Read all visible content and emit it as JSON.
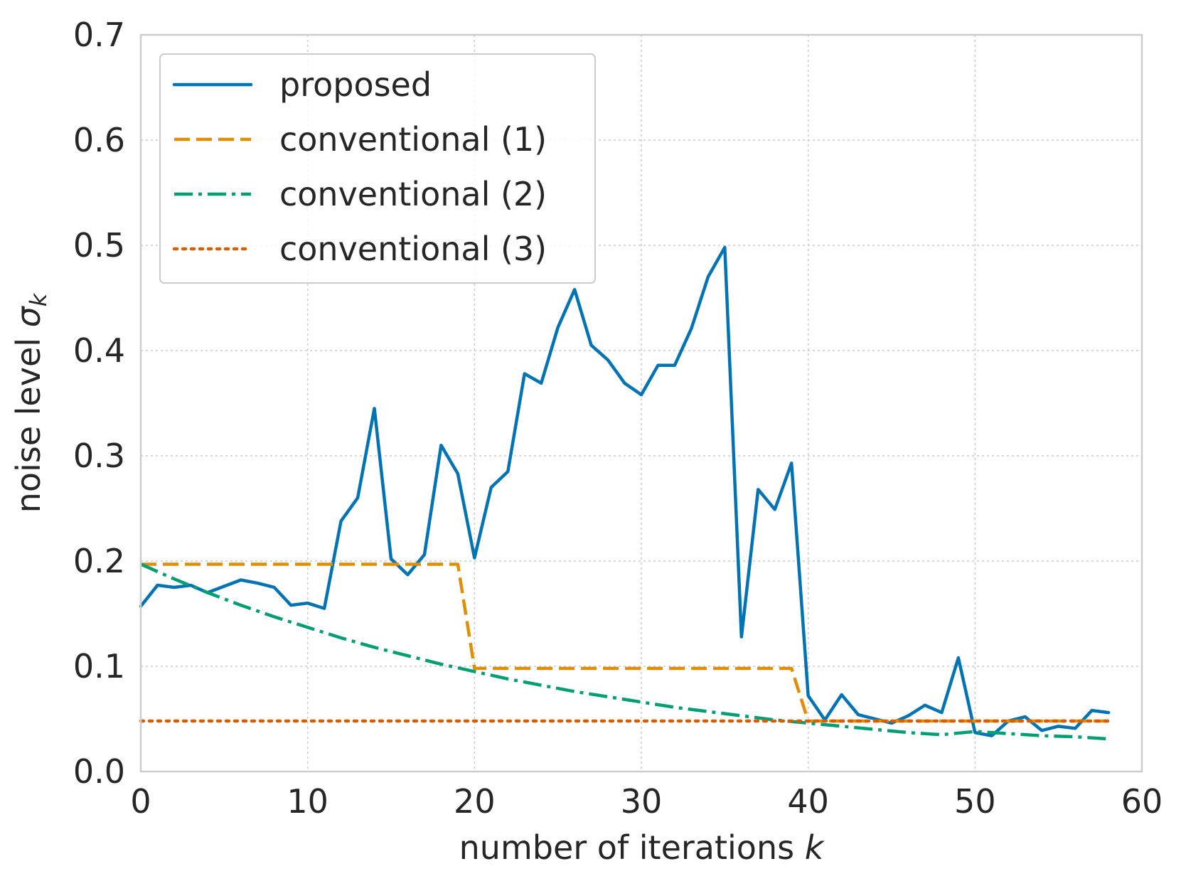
{
  "chart_data": {
    "type": "line",
    "xlabel": "number of iterations",
    "xlabel_var": "k",
    "ylabel": "noise level",
    "ylabel_var": "σ",
    "ylabel_sub": "k",
    "xlim": [
      0,
      60
    ],
    "ylim": [
      0,
      0.7
    ],
    "xticks": [
      0,
      10,
      20,
      30,
      40,
      50,
      60
    ],
    "yticks": [
      0.0,
      0.1,
      0.2,
      0.3,
      0.4,
      0.5,
      0.6,
      0.7
    ],
    "xtick_labels": [
      "0",
      "10",
      "20",
      "30",
      "40",
      "50",
      "60"
    ],
    "ytick_labels": [
      "0.0",
      "0.1",
      "0.2",
      "0.3",
      "0.4",
      "0.5",
      "0.6",
      "0.7"
    ],
    "grid": true,
    "legend_position": "top-left",
    "series": [
      {
        "name": "proposed",
        "color": "#0173b2",
        "style": "solid",
        "x": [
          0,
          1,
          2,
          3,
          4,
          5,
          6,
          7,
          8,
          9,
          10,
          11,
          12,
          13,
          14,
          15,
          16,
          17,
          18,
          19,
          20,
          21,
          22,
          23,
          24,
          25,
          26,
          27,
          28,
          29,
          30,
          31,
          32,
          33,
          34,
          35,
          36,
          37,
          38,
          39,
          40,
          41,
          42,
          43,
          44,
          45,
          46,
          47,
          48,
          49,
          50,
          51,
          52,
          53,
          54,
          55,
          56,
          57,
          58
        ],
        "y": [
          0.157,
          0.177,
          0.175,
          0.177,
          0.17,
          0.176,
          0.182,
          0.179,
          0.175,
          0.158,
          0.16,
          0.155,
          0.238,
          0.26,
          0.345,
          0.202,
          0.187,
          0.206,
          0.31,
          0.283,
          0.203,
          0.27,
          0.285,
          0.378,
          0.369,
          0.422,
          0.458,
          0.405,
          0.391,
          0.369,
          0.358,
          0.386,
          0.386,
          0.421,
          0.47,
          0.498,
          0.128,
          0.268,
          0.249,
          0.293,
          0.072,
          0.049,
          0.073,
          0.054,
          0.05,
          0.046,
          0.053,
          0.063,
          0.056,
          0.108,
          0.037,
          0.034,
          0.048,
          0.052,
          0.039,
          0.043,
          0.041,
          0.058,
          0.056
        ]
      },
      {
        "name": "conventional (1)",
        "color": "#de8f05",
        "style": "dashed",
        "x": [
          0,
          19,
          20,
          39,
          40,
          58
        ],
        "y": [
          0.197,
          0.197,
          0.098,
          0.098,
          0.048,
          0.048
        ]
      },
      {
        "name": "conventional (2)",
        "color": "#029e73",
        "style": "dashdot",
        "x": [
          0,
          2,
          4,
          6,
          8,
          10,
          12,
          14,
          16,
          18,
          20,
          22,
          24,
          26,
          28,
          30,
          32,
          34,
          36,
          38,
          40,
          42,
          44,
          46,
          48,
          50,
          52,
          54,
          56,
          58
        ],
        "y": [
          0.197,
          0.183,
          0.17,
          0.158,
          0.147,
          0.137,
          0.127,
          0.118,
          0.11,
          0.102,
          0.095,
          0.088,
          0.082,
          0.076,
          0.071,
          0.066,
          0.061,
          0.057,
          0.053,
          0.049,
          0.046,
          0.043,
          0.04,
          0.037,
          0.035,
          0.038,
          0.036,
          0.034,
          0.033,
          0.031
        ]
      },
      {
        "name": "conventional (3)",
        "color": "#d55e00",
        "style": "dotted",
        "x": [
          0,
          58
        ],
        "y": [
          0.048,
          0.048
        ]
      }
    ]
  }
}
